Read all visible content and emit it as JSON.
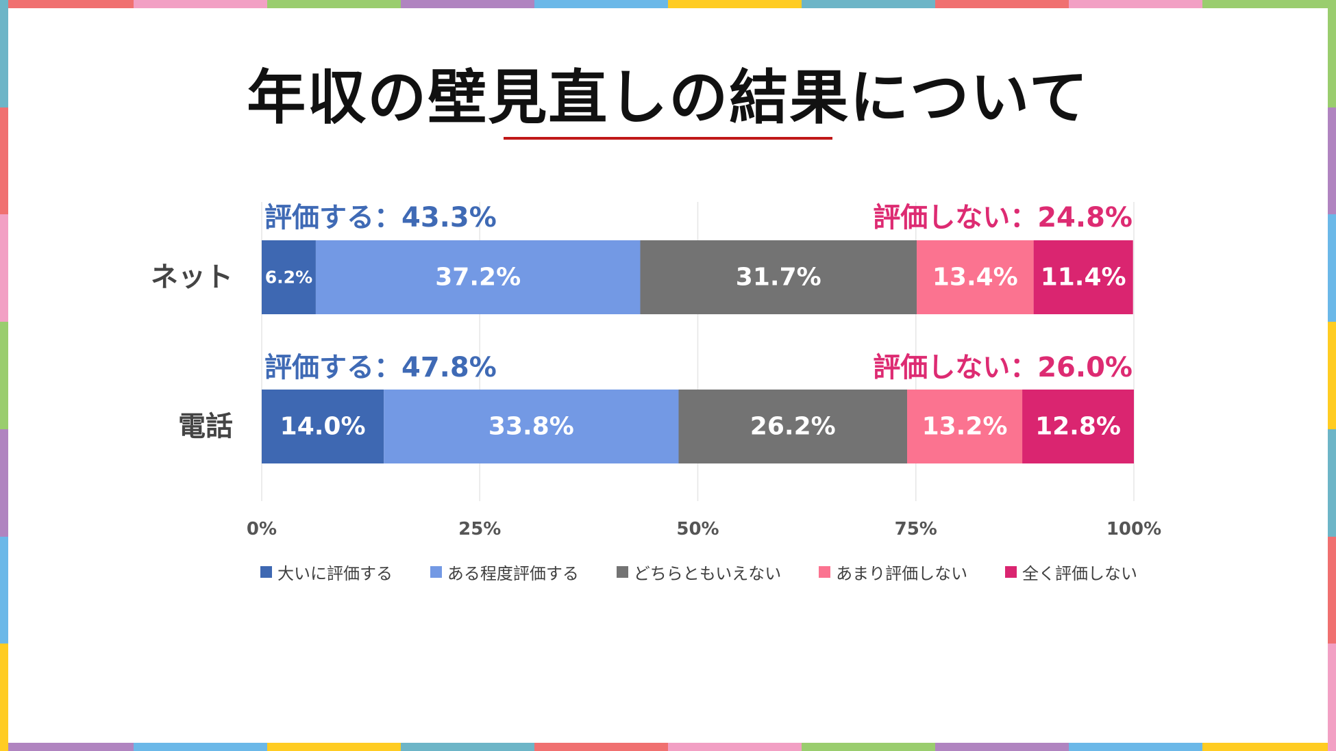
{
  "title": "年収の壁見直しの結果について",
  "colors": {
    "frame": [
      "#F07070",
      "#F2A0C4",
      "#9ACD6E",
      "#B084C0",
      "#6BB8E8",
      "#FFCC22",
      "#6DB5C7"
    ],
    "rule": "#C01818",
    "evaluate": "#3F6AB5",
    "not_evaluate": "#DD2B72",
    "grid": "#E6E6E6"
  },
  "chart_data": {
    "type": "bar",
    "orientation": "horizontal",
    "stacked": "100%",
    "categories": [
      "ネット",
      "電話"
    ],
    "series": [
      {
        "name": "大いに評価する",
        "color": "#3E68B2",
        "values": [
          6.2,
          14.0
        ],
        "labels": [
          "6.2%",
          "14.0%"
        ]
      },
      {
        "name": "ある程度評価する",
        "color": "#7399E4",
        "values": [
          37.2,
          33.8
        ],
        "labels": [
          "37.2%",
          "33.8%"
        ]
      },
      {
        "name": "どちらともいえない",
        "color": "#737373",
        "values": [
          31.7,
          26.2
        ],
        "labels": [
          "31.7%",
          "26.2%"
        ]
      },
      {
        "name": "あまり評価しない",
        "color": "#FB7390",
        "values": [
          13.4,
          13.2
        ],
        "labels": [
          "13.4%",
          "13.2%"
        ]
      },
      {
        "name": "全く評価しない",
        "color": "#DA2570",
        "values": [
          11.4,
          12.8
        ],
        "labels": [
          "11.4%",
          "12.8%"
        ]
      }
    ],
    "group_annotations": [
      {
        "evaluate": "評価する：43.3%",
        "not_evaluate": "評価しない：24.8%"
      },
      {
        "evaluate": "評価する：47.8%",
        "not_evaluate": "評価しない：26.0%"
      }
    ],
    "x_ticks": [
      "0%",
      "25%",
      "50%",
      "75%",
      "100%"
    ],
    "xlim": [
      0,
      100
    ],
    "grid": true,
    "legend_position": "bottom"
  }
}
